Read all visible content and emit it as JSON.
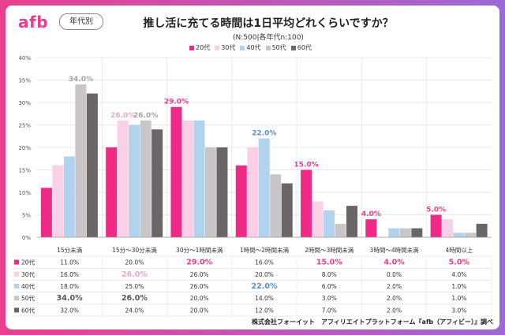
{
  "header": {
    "logo": "afb",
    "tag": "年代別",
    "title": "推し活に充てる時間は1日平均どれくらいですか？",
    "subtitle": "(N:500|各年代n:100)"
  },
  "footer": "株式会社フォーイット　アフィリエイトプラットフォーム『afb（アフィビー）』調べ",
  "colors": {
    "20代": "#ee2a86",
    "30代": "#fbcfe6",
    "40代": "#b2d3ee",
    "50代": "#c9c6c8",
    "60代": "#6a6668",
    "accent": "#e8408f",
    "blue_label": "#5b8fc9"
  },
  "chart_data": {
    "type": "bar",
    "categories": [
      "15分未満",
      "15分～30分未満",
      "30分～1時間未満",
      "1時間～2時間未満",
      "2時間～3時間未満",
      "3時間～4時間未満",
      "4時間以上"
    ],
    "series": [
      {
        "name": "20代",
        "values": [
          11.0,
          20.0,
          29.0,
          16.0,
          15.0,
          4.0,
          5.0
        ]
      },
      {
        "name": "30代",
        "values": [
          16.0,
          26.0,
          26.0,
          20.0,
          8.0,
          0.0,
          4.0
        ]
      },
      {
        "name": "40代",
        "values": [
          18.0,
          25.0,
          26.0,
          22.0,
          6.0,
          2.0,
          1.0
        ]
      },
      {
        "name": "50代",
        "values": [
          34.0,
          26.0,
          20.0,
          14.0,
          3.0,
          2.0,
          1.0
        ]
      },
      {
        "name": "60代",
        "values": [
          32.0,
          24.0,
          20.0,
          12.0,
          7.0,
          2.0,
          3.0
        ]
      }
    ],
    "yticks": [
      "0%",
      "5%",
      "10%",
      "15%",
      "20%",
      "25%",
      "30%",
      "35%",
      "40%"
    ],
    "ylim": [
      0,
      40
    ],
    "highlights": [
      {
        "category": 0,
        "series": 3,
        "label": "34.0%"
      },
      {
        "category": 1,
        "series": 1,
        "label": "26.0%"
      },
      {
        "category": 1,
        "series": 3,
        "label": "26.0%"
      },
      {
        "category": 2,
        "series": 0,
        "label": "29.0%"
      },
      {
        "category": 3,
        "series": 2,
        "label": "22.0%"
      },
      {
        "category": 4,
        "series": 0,
        "label": "15.0%"
      },
      {
        "category": 5,
        "series": 0,
        "label": "4.0%"
      },
      {
        "category": 6,
        "series": 0,
        "label": "5.0%"
      }
    ],
    "table": {
      "rows": [
        [
          "11.0%",
          "20.0%",
          "29.0%",
          "16.0%",
          "15.0%",
          "4.0%",
          "5.0%"
        ],
        [
          "16.0%",
          "26.0%",
          "26.0%",
          "20.0%",
          "8.0%",
          "0.0%",
          "4.0%"
        ],
        [
          "18.0%",
          "25.0%",
          "26.0%",
          "22.0%",
          "6.0%",
          "2.0%",
          "1.0%"
        ],
        [
          "34.0%",
          "26.0%",
          "20.0%",
          "14.0%",
          "3.0%",
          "2.0%",
          "1.0%"
        ],
        [
          "32.0%",
          "24.0%",
          "20.0%",
          "12.0%",
          "7.0%",
          "2.0%",
          "3.0%"
        ]
      ]
    }
  }
}
